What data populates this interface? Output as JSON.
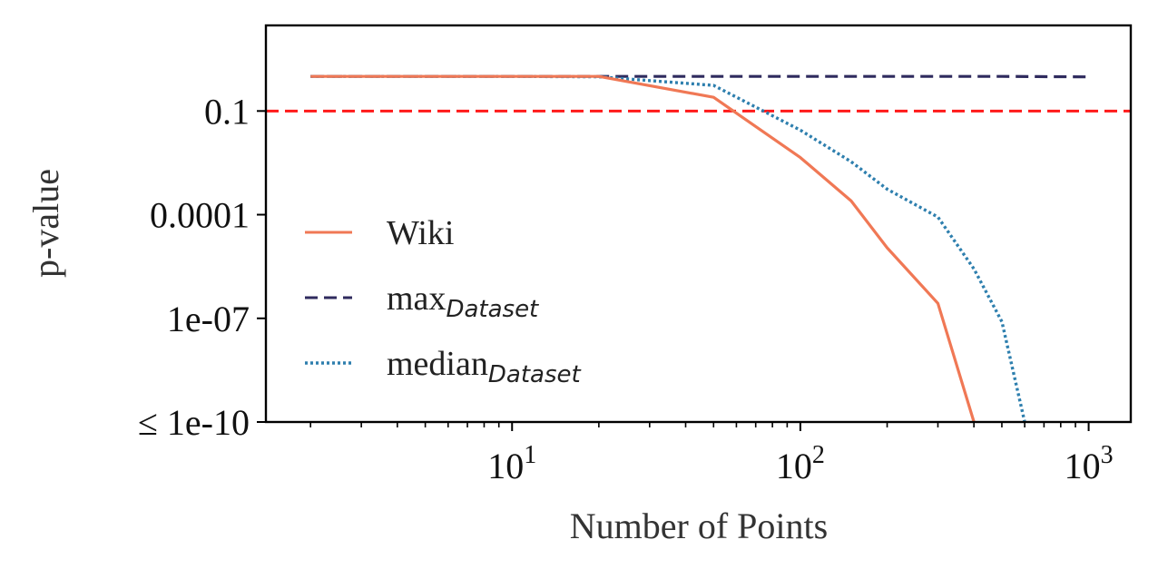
{
  "chart_data": {
    "type": "line",
    "xlabel": "Number of Points",
    "ylabel": "p-value",
    "xscale": "log",
    "yscale": "log",
    "xlim": [
      1.4,
      1400
    ],
    "ylim": [
      1e-10,
      30
    ],
    "x_ticks": [
      {
        "value": 10,
        "base": "10",
        "exp": "1"
      },
      {
        "value": 100,
        "base": "10",
        "exp": "2"
      },
      {
        "value": 1000,
        "base": "10",
        "exp": "3"
      }
    ],
    "y_ticks": [
      {
        "value": 0.1,
        "label": "0.1"
      },
      {
        "value": 0.0001,
        "label": "0.0001"
      },
      {
        "value": 1e-07,
        "label": "1e-07"
      },
      {
        "value": 1e-10,
        "label": "≤ 1e-10"
      }
    ],
    "reference_line": {
      "y": 0.1,
      "color": "#ff1a1a",
      "style": "dashed"
    },
    "series": [
      {
        "name": "Wiki",
        "name_sub": "",
        "color": "#f07855",
        "style": "solid",
        "x": [
          2,
          5,
          10,
          20,
          50,
          100,
          150,
          200,
          300,
          400
        ],
        "y": [
          1,
          1,
          1,
          1,
          0.25,
          0.0045,
          0.00025,
          1.1e-05,
          2.7e-07,
          1e-10
        ]
      },
      {
        "name": "max",
        "name_sub": "Dataset",
        "color": "#2f2b5e",
        "style": "dashed",
        "x": [
          2,
          5,
          10,
          20,
          50,
          100,
          200,
          500,
          1000
        ],
        "y": [
          1,
          1,
          1,
          1,
          1,
          1,
          1,
          1,
          0.97
        ]
      },
      {
        "name": "median",
        "name_sub": "Dataset",
        "color": "#2e7fae",
        "style": "dotted",
        "x": [
          2,
          5,
          10,
          20,
          50,
          100,
          150,
          200,
          300,
          400,
          500,
          600
        ],
        "y": [
          1,
          1,
          1,
          0.98,
          0.55,
          0.028,
          0.0034,
          0.00055,
          8.5e-05,
          2.7e-06,
          8e-08,
          1e-10
        ]
      }
    ],
    "legend": {
      "position": "left-bottom"
    }
  }
}
